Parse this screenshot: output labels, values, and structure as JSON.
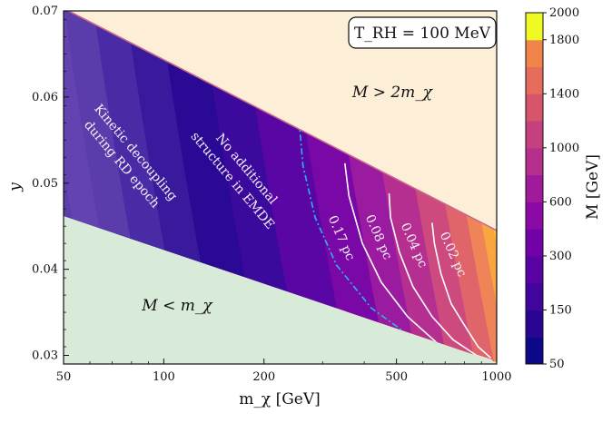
{
  "chart_data": {
    "type": "heatmap",
    "xlabel": "m_χ [GeV]",
    "ylabel": "y",
    "x_scale": "log",
    "xlim": [
      50,
      1000
    ],
    "ylim": [
      0.029,
      0.07
    ],
    "x_ticks": [
      {
        "value": 50,
        "label": "50"
      },
      {
        "value": 100,
        "label": "100"
      },
      {
        "value": 200,
        "label": "200"
      },
      {
        "value": 500,
        "label": "500"
      },
      {
        "value": 1000,
        "label": "1000"
      }
    ],
    "y_ticks": [
      {
        "value": 0.03,
        "label": "0.03"
      },
      {
        "value": 0.04,
        "label": "0.04"
      },
      {
        "value": 0.05,
        "label": "0.05"
      },
      {
        "value": 0.06,
        "label": "0.06"
      },
      {
        "value": 0.07,
        "label": "0.07"
      }
    ],
    "boundaries": {
      "upper_line": [
        [
          50,
          0.0703
        ],
        [
          1000,
          0.0445
        ]
      ],
      "lower_line": [
        [
          50,
          0.0462
        ],
        [
          1000,
          0.0292
        ]
      ]
    },
    "regions": [
      {
        "label": "M > 2m_χ",
        "color": "#fdeed8",
        "side": "above-upper"
      },
      {
        "label": "M < m_χ",
        "color": "#d8ead8",
        "side": "below-lower"
      }
    ],
    "band_region_labels": [
      {
        "text": "Kinetic decoupling",
        "line": 1
      },
      {
        "text": "during RD epoch",
        "line": 2
      },
      {
        "text": "No additional",
        "line": 1
      },
      {
        "text": "structure in EMDE",
        "line": 2
      }
    ],
    "info_box": "T_RH = 100 MeV",
    "colorbar": {
      "label": "M [GeV]",
      "levels": [
        50,
        100,
        150,
        200,
        300,
        400,
        600,
        800,
        1000,
        1200,
        1400,
        1600,
        1800,
        2000
      ],
      "tick_labels": [
        "50",
        "150",
        "300",
        "600",
        "1000",
        "1400",
        "1800",
        "2000"
      ]
    },
    "filled_contours": [
      {
        "x_at_y_mid": 52,
        "color": "#5b3fa8"
      },
      {
        "x_at_y_mid": 62,
        "color": "#6243b0"
      },
      {
        "x_at_y_mid": 76,
        "color": "#5a3cab"
      },
      {
        "x_at_y_mid": 95,
        "color": "#4a2ba6"
      },
      {
        "x_at_y_mid": 120,
        "color": "#3a1a9c"
      },
      {
        "x_at_y_mid": 160,
        "color": "#2a0a95"
      },
      {
        "x_at_y_mid": 210,
        "color": "#3c099d"
      },
      {
        "x_at_y_mid": 290,
        "color": "#5a06a5"
      },
      {
        "x_at_y_mid": 380,
        "color": "#7a08a6"
      },
      {
        "x_at_y_mid": 470,
        "color": "#9a1aa0"
      },
      {
        "x_at_y_mid": 580,
        "color": "#b52f90"
      },
      {
        "x_at_y_mid": 700,
        "color": "#cd4a7e"
      },
      {
        "x_at_y_mid": 800,
        "color": "#e0656a"
      },
      {
        "x_at_y_mid": 880,
        "color": "#ef8458"
      },
      {
        "x_at_y_mid": 950,
        "color": "#f8a63f"
      },
      {
        "x_at_y_mid": 1000,
        "color": "#f7cb3a"
      }
    ],
    "contour_lines": [
      {
        "label": "0.17 pc",
        "style": "dashdot",
        "color": "#29b6e8",
        "points": [
          [
            255,
            0.0572
          ],
          [
            262,
            0.052
          ],
          [
            285,
            0.046
          ],
          [
            330,
            0.0405
          ],
          [
            420,
            0.0355
          ],
          [
            560,
            0.032
          ],
          [
            760,
            0.03
          ],
          [
            950,
            0.0293
          ]
        ]
      },
      {
        "label": "0.08 pc",
        "style": "solid",
        "color": "#ffffff",
        "points": [
          [
            350,
            0.0523
          ],
          [
            360,
            0.0485
          ],
          [
            395,
            0.043
          ],
          [
            450,
            0.0385
          ],
          [
            540,
            0.0345
          ],
          [
            660,
            0.0315
          ],
          [
            820,
            0.0298
          ],
          [
            960,
            0.0293
          ]
        ]
      },
      {
        "label": "0.04 pc",
        "style": "solid",
        "color": "#ffffff",
        "points": [
          [
            475,
            0.0488
          ],
          [
            480,
            0.046
          ],
          [
            510,
            0.042
          ],
          [
            560,
            0.038
          ],
          [
            640,
            0.0345
          ],
          [
            740,
            0.0318
          ],
          [
            870,
            0.03
          ],
          [
            970,
            0.0294
          ]
        ]
      },
      {
        "label": "0.02 pc",
        "style": "solid",
        "color": "#ffffff",
        "points": [
          [
            640,
            0.0454
          ],
          [
            650,
            0.043
          ],
          [
            680,
            0.0395
          ],
          [
            730,
            0.036
          ],
          [
            800,
            0.0335
          ],
          [
            880,
            0.031
          ],
          [
            960,
            0.0297
          ]
        ]
      }
    ],
    "boundary_line": {
      "label": "",
      "color": "#c86a8a",
      "points": [
        [
          50,
          0.0703
        ],
        [
          1000,
          0.0445
        ]
      ]
    },
    "grid": false,
    "legend": "none"
  }
}
